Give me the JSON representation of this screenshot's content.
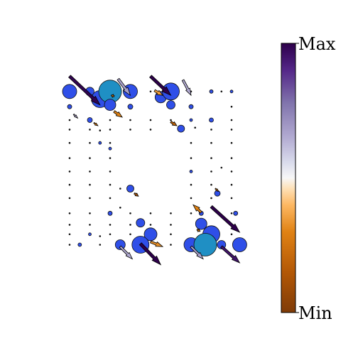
{
  "chart_data": {
    "type": "scatter",
    "title": "",
    "xlabel": "",
    "ylabel": "",
    "grid": false,
    "x_grid": [
      0,
      1,
      2,
      3,
      4,
      5,
      6,
      7,
      8
    ],
    "y_grid": [
      0,
      1,
      2,
      3,
      4,
      5,
      6,
      7,
      8,
      9
    ],
    "xlim": [
      0,
      8
    ],
    "ylim": [
      0,
      9
    ],
    "colorbar": {
      "label_max": "Max",
      "label_min": "Min",
      "colormap": "PuOr",
      "color_max": "#2d004b",
      "color_mid": "#f7f7f7",
      "color_min": "#7f3b08"
    },
    "circle_color": "#2f4fe8",
    "cyan_circle_color": "#1f8fc4",
    "circles": [
      {
        "x": 0,
        "y": 9,
        "r": 10
      },
      {
        "x": 1,
        "y": 9,
        "r": 6
      },
      {
        "x": 1.5,
        "y": 8.6,
        "r": 12
      },
      {
        "x": 2,
        "y": 9,
        "r": 16,
        "cyan": true
      },
      {
        "x": 2,
        "y": 8.3,
        "r": 8
      },
      {
        "x": 3,
        "y": 9,
        "r": 10
      },
      {
        "x": 4.5,
        "y": 8.7,
        "r": 8
      },
      {
        "x": 5,
        "y": 9,
        "r": 12
      },
      {
        "x": 5,
        "y": 8.3,
        "r": 6
      },
      {
        "x": 0,
        "y": 8.2,
        "r": 3
      },
      {
        "x": 1,
        "y": 7.5,
        "r": 3.5
      },
      {
        "x": 3,
        "y": 8.2,
        "r": 3.5
      },
      {
        "x": 6,
        "y": 8.2,
        "r": 3
      },
      {
        "x": 7,
        "y": 9,
        "r": 2.5
      },
      {
        "x": 8,
        "y": 9,
        "r": 2
      },
      {
        "x": 5.5,
        "y": 7.05,
        "r": 5
      },
      {
        "x": 3,
        "y": 3.9,
        "r": 5
      },
      {
        "x": 7.3,
        "y": 3.65,
        "r": 4
      },
      {
        "x": 6.5,
        "y": 2.6,
        "r": 3
      },
      {
        "x": 2,
        "y": 2.6,
        "r": 3
      },
      {
        "x": 3.5,
        "y": 2.1,
        "r": 6
      },
      {
        "x": 4,
        "y": 1.5,
        "r": 9
      },
      {
        "x": 6.5,
        "y": 2.05,
        "r": 8
      },
      {
        "x": 7,
        "y": 1.5,
        "r": 12
      },
      {
        "x": 2.5,
        "y": 0.95,
        "r": 7
      },
      {
        "x": 3.5,
        "y": 0.95,
        "r": 12
      },
      {
        "x": 6,
        "y": 0.95,
        "r": 10
      },
      {
        "x": 6.7,
        "y": 0.95,
        "r": 16,
        "cyan": true
      },
      {
        "x": 7.5,
        "y": 0.95,
        "r": 6
      },
      {
        "x": 8.4,
        "y": 0.95,
        "r": 10
      },
      {
        "x": 8.2,
        "y": 2.6,
        "r": 3
      },
      {
        "x": 0.5,
        "y": 0.95,
        "r": 2.5
      },
      {
        "x": 1,
        "y": 1.5,
        "r": 2
      },
      {
        "x": 7,
        "y": 7.5,
        "r": 3
      },
      {
        "x": 6,
        "y": 7.5,
        "r": 2
      },
      {
        "x": 6,
        "y": 4.8,
        "r": 2
      },
      {
        "x": 2,
        "y": 6,
        "r": 2
      },
      {
        "x": 1.5,
        "y": 6.3,
        "r": 2
      }
    ],
    "arrows": [
      {
        "x1": 0,
        "y1": 9.8,
        "x2": 1.5,
        "y2": 8.3,
        "w": 4,
        "v": 0.98
      },
      {
        "x1": 2.4,
        "y1": 9.65,
        "x2": 3,
        "y2": 8.8,
        "w": 3.5,
        "v": 0.35
      },
      {
        "x1": 4,
        "y1": 9.8,
        "x2": 5,
        "y2": 8.8,
        "w": 4,
        "v": 1.0
      },
      {
        "x1": 5.6,
        "y1": 9.6,
        "x2": 6,
        "y2": 8.8,
        "w": 3,
        "v": 0.3
      },
      {
        "x1": 4.2,
        "y1": 9.05,
        "x2": 4.6,
        "y2": 8.8,
        "w": 3,
        "v": -0.3
      },
      {
        "x1": 2.2,
        "y1": 8.75,
        "x2": 2.05,
        "y2": 8.8,
        "w": 2,
        "v": -0.5
      },
      {
        "x1": 2.2,
        "y1": 7.95,
        "x2": 2.6,
        "y2": 7.65,
        "w": 3,
        "v": -0.4
      },
      {
        "x1": 0.2,
        "y1": 7.8,
        "x2": 0.4,
        "y2": 7.6,
        "w": 1.5,
        "v": 0.3
      },
      {
        "x1": 1.2,
        "y1": 7.35,
        "x2": 1.4,
        "y2": 7.2,
        "w": 1.5,
        "v": -0.5
      },
      {
        "x1": 5,
        "y1": 7.4,
        "x2": 5.3,
        "y2": 7.2,
        "w": 2.5,
        "v": -0.6
      },
      {
        "x1": 3.2,
        "y1": 3.65,
        "x2": 3.4,
        "y2": 3.5,
        "w": 2,
        "v": -0.7
      },
      {
        "x1": 7.2,
        "y1": 3.9,
        "x2": 7.35,
        "y2": 3.75,
        "w": 1.5,
        "v": -0.6
      },
      {
        "x1": 6.5,
        "y1": 2.65,
        "x2": 6.1,
        "y2": 3.05,
        "w": 3,
        "v": -0.4
      },
      {
        "x1": 6.3,
        "y1": 1.75,
        "x2": 6.45,
        "y2": 1.65,
        "w": 2,
        "v": -0.5
      },
      {
        "x1": 7,
        "y1": 2.95,
        "x2": 8.4,
        "y2": 1.6,
        "w": 4,
        "v": 1.0
      },
      {
        "x1": 7.5,
        "y1": 0.85,
        "x2": 8.4,
        "y2": 0.0,
        "w": 3.5,
        "v": 0.9
      },
      {
        "x1": 3.5,
        "y1": 1.0,
        "x2": 4.5,
        "y2": -0.1,
        "w": 4,
        "v": 1.0
      },
      {
        "x1": 2.5,
        "y1": 0.85,
        "x2": 3.1,
        "y2": 0.2,
        "w": 3,
        "v": 0.3
      },
      {
        "x1": 6,
        "y1": 0.85,
        "x2": 6.6,
        "y2": 0.2,
        "w": 3,
        "v": 0.35
      },
      {
        "x1": 4,
        "y1": 1.1,
        "x2": 4.6,
        "y2": 0.85,
        "w": 3,
        "v": -0.35
      }
    ],
    "dots": {
      "color": "#111111",
      "points": [
        [
          4,
          9
        ],
        [
          6,
          9
        ],
        [
          7.5,
          9
        ],
        [
          8,
          8.2
        ],
        [
          0,
          7.5
        ],
        [
          2,
          7.5
        ],
        [
          3,
          7.5
        ],
        [
          4,
          7.5
        ],
        [
          5,
          7.5
        ],
        [
          8,
          7.5
        ],
        [
          0,
          7
        ],
        [
          1,
          7
        ],
        [
          1.5,
          6.95
        ],
        [
          2,
          7
        ],
        [
          3,
          7
        ],
        [
          4,
          7
        ],
        [
          6.2,
          7.1
        ],
        [
          7,
          7
        ],
        [
          8,
          7
        ],
        [
          0,
          6.3
        ],
        [
          1,
          6.3
        ],
        [
          2,
          6.3
        ],
        [
          6,
          6.3
        ],
        [
          7,
          6.3
        ],
        [
          8,
          6.3
        ],
        [
          0,
          5.5
        ],
        [
          1,
          5.5
        ],
        [
          2,
          5.5
        ],
        [
          6,
          5.5
        ],
        [
          7,
          5.5
        ],
        [
          8,
          5.5
        ],
        [
          0,
          4.8
        ],
        [
          1,
          4.8
        ],
        [
          2,
          4.8
        ],
        [
          7,
          4.8
        ],
        [
          7.5,
          5
        ],
        [
          8,
          4.8
        ],
        [
          0,
          4.1
        ],
        [
          1,
          4.1
        ],
        [
          2,
          4.1
        ],
        [
          6,
          4.1
        ],
        [
          7,
          4.1
        ],
        [
          8,
          4.1
        ],
        [
          0,
          3.4
        ],
        [
          1,
          3.4
        ],
        [
          2,
          3.4
        ],
        [
          6,
          3.4
        ],
        [
          7,
          3.4
        ],
        [
          8,
          3.4
        ],
        [
          2.5,
          3.9
        ],
        [
          0,
          2.6
        ],
        [
          1,
          2.6
        ],
        [
          2.5,
          2.9
        ],
        [
          3,
          2.6
        ],
        [
          4,
          2.6
        ],
        [
          5,
          2.6
        ],
        [
          6,
          2.6
        ],
        [
          8,
          2.6
        ],
        [
          0,
          2
        ],
        [
          1,
          2
        ],
        [
          2,
          2
        ],
        [
          3,
          2
        ],
        [
          4,
          2
        ],
        [
          5,
          2
        ],
        [
          8,
          2
        ],
        [
          0,
          1.5
        ],
        [
          1.5,
          1.4
        ],
        [
          2,
          1.5
        ],
        [
          3,
          1.5
        ],
        [
          5,
          1.5
        ],
        [
          8,
          1.5
        ],
        [
          0,
          0.95
        ],
        [
          1.5,
          0.95
        ],
        [
          5,
          0.95
        ]
      ]
    }
  }
}
